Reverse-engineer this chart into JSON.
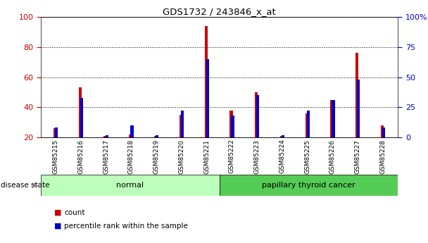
{
  "title": "GDS1732 / 243846_x_at",
  "samples": [
    "GSM85215",
    "GSM85216",
    "GSM85217",
    "GSM85218",
    "GSM85219",
    "GSM85220",
    "GSM85221",
    "GSM85222",
    "GSM85223",
    "GSM85224",
    "GSM85225",
    "GSM85226",
    "GSM85227",
    "GSM85228"
  ],
  "count_values": [
    26,
    53,
    21,
    22,
    21,
    35,
    94,
    38,
    50,
    21,
    36,
    45,
    76,
    28
  ],
  "percentile_values": [
    8,
    33,
    2,
    10,
    2,
    22,
    65,
    18,
    35,
    2,
    22,
    31,
    48,
    8
  ],
  "left_ylim": [
    20,
    100
  ],
  "right_ylim": [
    0,
    100
  ],
  "right_yticks": [
    0,
    25,
    50,
    75,
    100
  ],
  "right_yticklabels": [
    "0",
    "25",
    "50",
    "75",
    "100%"
  ],
  "left_yticks": [
    20,
    40,
    60,
    80,
    100
  ],
  "groups": [
    {
      "label": "normal",
      "start": 0,
      "end": 7,
      "color": "#bbffbb"
    },
    {
      "label": "papillary thyroid cancer",
      "start": 7,
      "end": 14,
      "color": "#55cc55"
    }
  ],
  "bar_width": 0.12,
  "bar_gap": 0.06,
  "count_color": "#cc0000",
  "percentile_color": "#0000cc",
  "disease_state_label": "disease state",
  "legend_items": [
    {
      "label": "count",
      "color": "#cc0000"
    },
    {
      "label": "percentile rank within the sample",
      "color": "#0000cc"
    }
  ],
  "left_tick_color": "#cc0000",
  "right_tick_color": "#0000cc"
}
